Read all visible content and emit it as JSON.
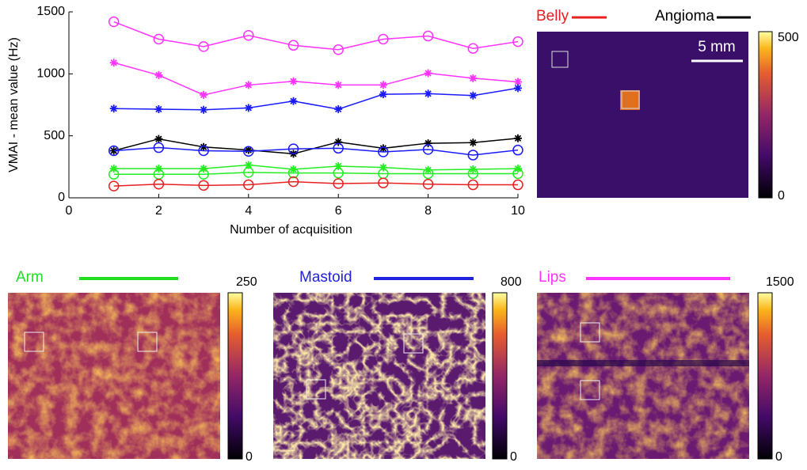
{
  "chart_data": {
    "type": "line",
    "xlabel": "Number of acquisition",
    "ylabel": "VMAI - mean value (Hz)",
    "x": [
      1,
      2,
      3,
      4,
      5,
      6,
      7,
      8,
      9,
      10
    ],
    "xlim": [
      0,
      10
    ],
    "xticks": [
      0,
      2,
      4,
      6,
      8,
      10
    ],
    "ylim": [
      0,
      1500
    ],
    "yticks": [
      0,
      500,
      1000,
      1500
    ],
    "series": [
      {
        "color": "#ff33ff",
        "marker": "o",
        "values": [
          1420,
          1280,
          1220,
          1310,
          1230,
          1195,
          1280,
          1305,
          1205,
          1260
        ]
      },
      {
        "color": "#ff33ff",
        "marker": "*",
        "values": [
          1090,
          990,
          830,
          910,
          940,
          910,
          910,
          1005,
          965,
          935
        ]
      },
      {
        "color": "#1a1aff",
        "marker": "*",
        "values": [
          720,
          715,
          710,
          725,
          780,
          715,
          835,
          840,
          825,
          885
        ]
      },
      {
        "color": "#000000",
        "marker": "*",
        "values": [
          380,
          475,
          410,
          385,
          355,
          450,
          400,
          440,
          445,
          480
        ]
      },
      {
        "color": "#1a1aff",
        "marker": "o",
        "values": [
          380,
          405,
          380,
          375,
          395,
          400,
          370,
          390,
          345,
          385
        ]
      },
      {
        "color": "#22ee22",
        "marker": "*",
        "values": [
          235,
          235,
          235,
          265,
          230,
          255,
          245,
          225,
          230,
          235
        ]
      },
      {
        "color": "#22ee22",
        "marker": "o",
        "values": [
          190,
          190,
          190,
          205,
          200,
          200,
          195,
          195,
          195,
          195
        ]
      },
      {
        "color": "#e82020",
        "marker": "o",
        "values": [
          95,
          110,
          100,
          105,
          130,
          115,
          120,
          110,
          105,
          105
        ]
      }
    ]
  },
  "top_legend": [
    {
      "label": "Belly",
      "color": "#e82020"
    },
    {
      "label": "Angioma",
      "color": "#000000"
    }
  ],
  "angioma_image": {
    "scale_bar": "5 mm",
    "colorbar_ticks": [
      0,
      500
    ]
  },
  "panels": [
    {
      "title": "Arm",
      "color": "#22dd22",
      "colorbar_ticks": [
        0,
        250
      ]
    },
    {
      "title": "Mastoid",
      "color": "#2222dd",
      "colorbar_ticks": [
        0,
        800
      ]
    },
    {
      "title": "Lips",
      "color": "#ff33ff",
      "colorbar_ticks": [
        0,
        1500
      ]
    }
  ]
}
